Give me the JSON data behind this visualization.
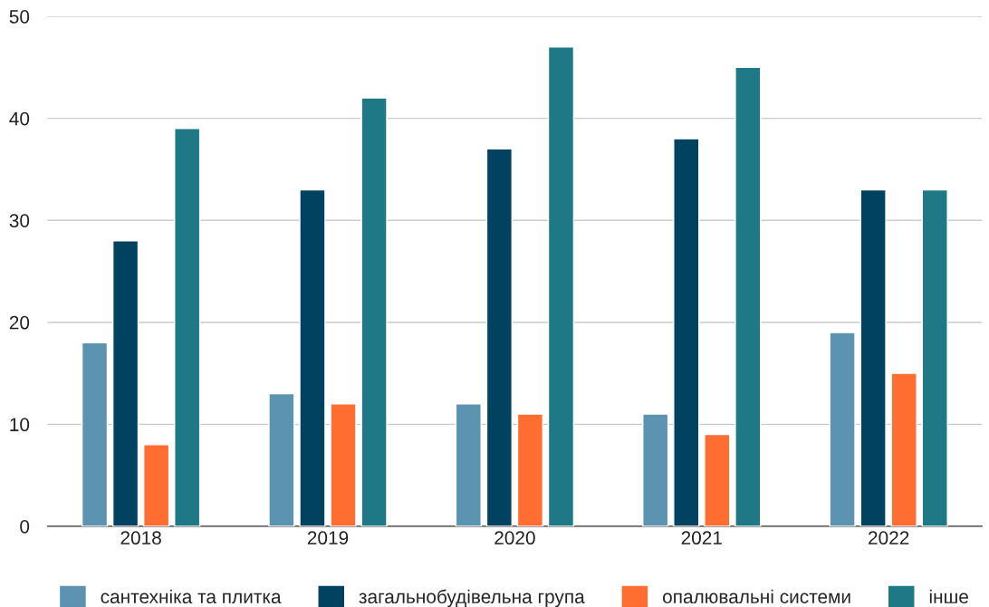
{
  "chart_data": {
    "type": "bar",
    "categories": [
      "2018",
      "2019",
      "2020",
      "2021",
      "2022"
    ],
    "series": [
      {
        "name": "сантехніка та плитка",
        "color": "#5b93b1",
        "values": [
          18,
          13,
          12,
          11,
          19
        ]
      },
      {
        "name": "загальнобудівельна група",
        "color": "#00425f",
        "values": [
          28,
          33,
          37,
          38,
          33
        ]
      },
      {
        "name": "опалювальні системи",
        "color": "#ff6d31",
        "values": [
          8,
          12,
          11,
          9,
          15
        ]
      },
      {
        "name": "інше",
        "color": "#1e7886",
        "values": [
          39,
          42,
          47,
          45,
          33
        ]
      }
    ],
    "ylim": [
      0,
      50
    ],
    "yticks": [
      0,
      10,
      20,
      30,
      40,
      50
    ],
    "grid": "y",
    "legend": "bottom"
  }
}
